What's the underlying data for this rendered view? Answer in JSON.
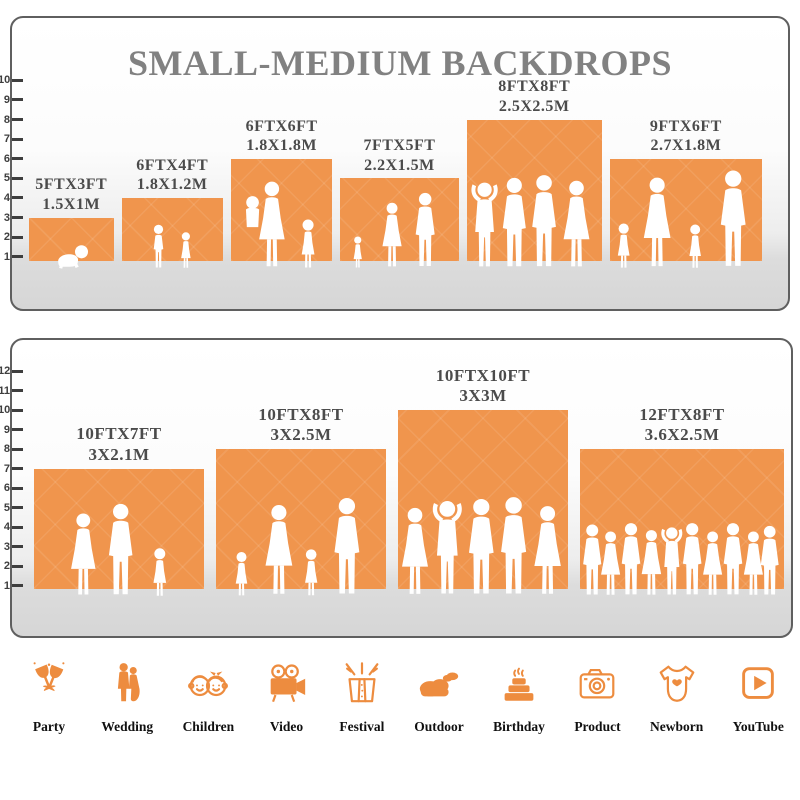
{
  "title": "SMALL-MEDIUM BACKDROPS",
  "colors": {
    "backdrop_orange": "#F0954D",
    "icon_orange": "#ED8C3F",
    "title_gray": "#818181",
    "label_gray": "#4B4B4B",
    "ruler_dark": "#3E3E3E"
  },
  "top_panel": {
    "ruler_max": 10,
    "items": [
      {
        "size_ft": "5FTX3FT",
        "size_m": "1.5X1M",
        "w_ft": 5,
        "h_ft": 3
      },
      {
        "size_ft": "6FTX4FT",
        "size_m": "1.8X1.2M",
        "w_ft": 6,
        "h_ft": 4
      },
      {
        "size_ft": "6FTX6FT",
        "size_m": "1.8X1.8M",
        "w_ft": 6,
        "h_ft": 6
      },
      {
        "size_ft": "7FTX5FT",
        "size_m": "2.2X1.5M",
        "w_ft": 7,
        "h_ft": 5
      },
      {
        "size_ft": "8FTX8FT",
        "size_m": "2.5X2.5M",
        "w_ft": 8,
        "h_ft": 8
      },
      {
        "size_ft": "9FTX6FT",
        "size_m": "2.7X1.8M",
        "w_ft": 9,
        "h_ft": 6
      }
    ]
  },
  "bottom_panel": {
    "ruler_max": 12,
    "items": [
      {
        "size_ft": "10FTX7FT",
        "size_m": "3X2.1M",
        "w_ft": 10,
        "h_ft": 7
      },
      {
        "size_ft": "10FTX8FT",
        "size_m": "3X2.5M",
        "w_ft": 10,
        "h_ft": 8
      },
      {
        "size_ft": "10FTX10FT",
        "size_m": "3X3M",
        "w_ft": 10,
        "h_ft": 10
      },
      {
        "size_ft": "12FTX8FT",
        "size_m": "3.6X2.5M",
        "w_ft": 12,
        "h_ft": 8
      }
    ]
  },
  "categories": [
    {
      "label": "Party",
      "icon": "party-icon"
    },
    {
      "label": "Wedding",
      "icon": "wedding-icon"
    },
    {
      "label": "Children",
      "icon": "children-icon"
    },
    {
      "label": "Video",
      "icon": "video-icon"
    },
    {
      "label": "Festival",
      "icon": "festival-icon"
    },
    {
      "label": "Outdoor",
      "icon": "outdoor-icon"
    },
    {
      "label": "Birthday",
      "icon": "birthday-icon"
    },
    {
      "label": "Product",
      "icon": "product-icon"
    },
    {
      "label": "Newborn",
      "icon": "newborn-icon"
    },
    {
      "label": "YouTube",
      "icon": "youtube-icon"
    }
  ]
}
